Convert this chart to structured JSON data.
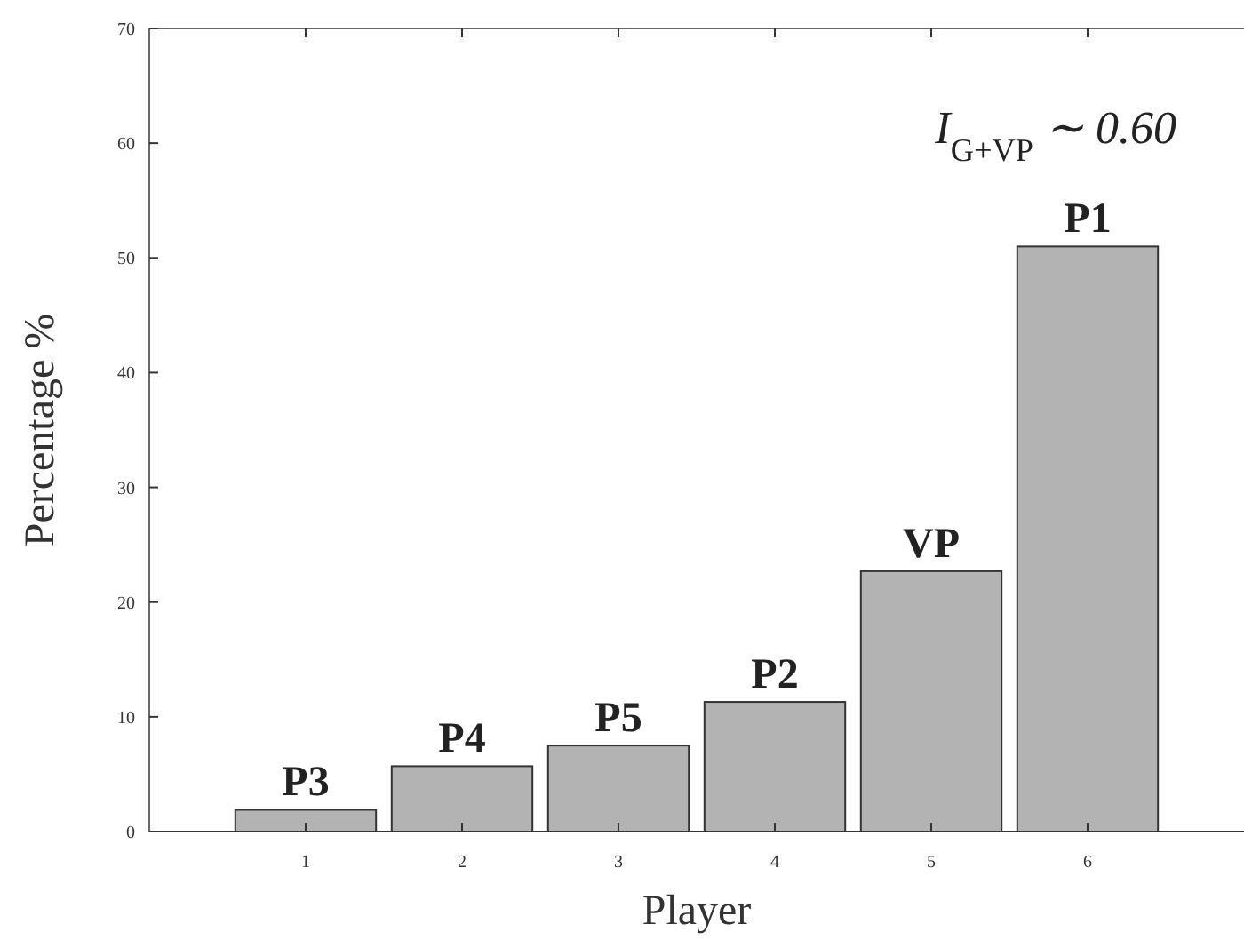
{
  "chart_data": {
    "type": "bar",
    "xlabel": "Player",
    "ylabel": "Percentage %",
    "categories": [
      "1",
      "2",
      "3",
      "4",
      "5",
      "6"
    ],
    "values": [
      1.9,
      5.7,
      7.5,
      11.3,
      22.7,
      51
    ],
    "color": "#b3b3b3",
    "ylim": [
      0,
      70
    ],
    "yticks": [
      0,
      10,
      20,
      30,
      40,
      50,
      60,
      70
    ],
    "grid": false,
    "annotations": [
      {
        "text": "P3",
        "x": "1",
        "y": 1.9
      },
      {
        "text": "P4",
        "x": "2",
        "y": 5.7
      },
      {
        "text": "P5",
        "x": "3",
        "y": 7.5
      },
      {
        "text": "P2",
        "x": "4",
        "y": 11.3
      },
      {
        "text": "VP",
        "x": "5",
        "y": 22.7
      },
      {
        "text": "P1",
        "x": "6",
        "y": 51
      },
      "I$_{G+VP}$ ∼ 0.60"
    ]
  }
}
